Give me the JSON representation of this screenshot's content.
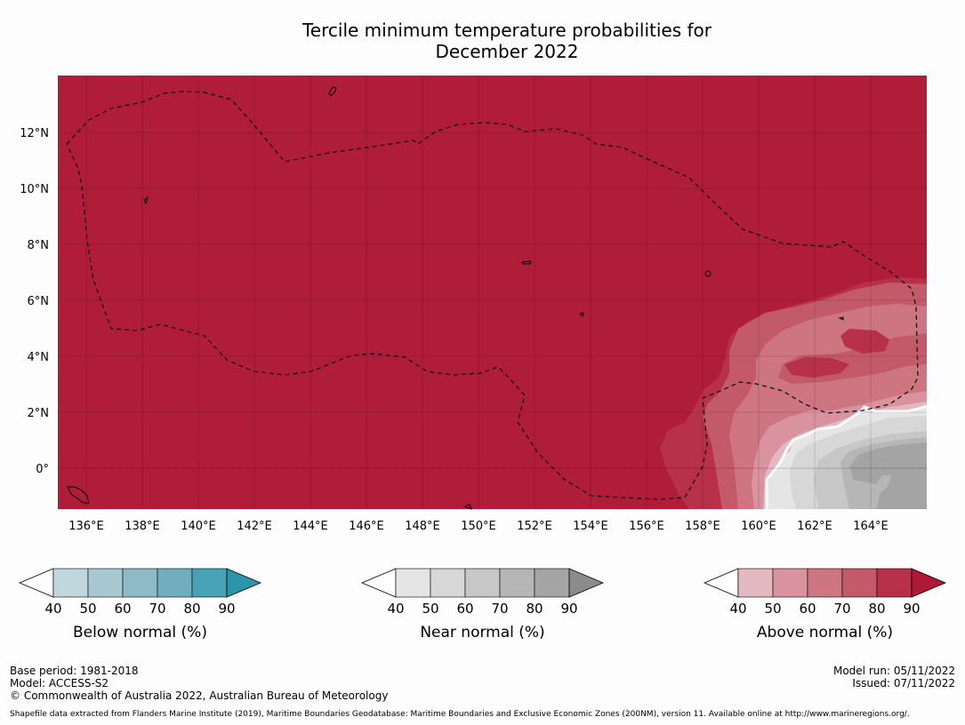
{
  "title_line1": "Tercile minimum temperature probabilities for",
  "title_line2": "December 2022",
  "map": {
    "background_color": "#b01d38",
    "lat_labels": [
      "12°N",
      "10°N",
      "8°N",
      "6°N",
      "4°N",
      "2°N",
      "0°"
    ],
    "lon_labels": [
      "136°E",
      "138°E",
      "140°E",
      "142°E",
      "144°E",
      "146°E",
      "148°E",
      "150°E",
      "152°E",
      "154°E",
      "156°E",
      "158°E",
      "160°E",
      "162°E",
      "164°E"
    ]
  },
  "colorbars": [
    {
      "id": "below",
      "title": "Below normal (%)",
      "ticks": [
        "40",
        "50",
        "60",
        "70",
        "80",
        "90"
      ],
      "colors": [
        "#c0d7de",
        "#a8c8d1",
        "#8fbac7",
        "#70aebd",
        "#47a2b5",
        "#2d95ab"
      ]
    },
    {
      "id": "near",
      "title": "Near normal (%)",
      "ticks": [
        "40",
        "50",
        "60",
        "70",
        "80",
        "90"
      ],
      "colors": [
        "#e5e5e5",
        "#d7d7d7",
        "#c7c7c7",
        "#b6b6b6",
        "#a4a4a4",
        "#8c8c8c"
      ]
    },
    {
      "id": "above",
      "title": "Above normal (%)",
      "ticks": [
        "40",
        "50",
        "60",
        "70",
        "80",
        "90"
      ],
      "colors": [
        "#e3b8c0",
        "#d8939e",
        "#cd7581",
        "#c35a69",
        "#b63149",
        "#ae1a36"
      ]
    }
  ],
  "footer": {
    "base_period": "Base period: 1981-2018",
    "model": "Model: ACCESS-S2",
    "copyright": "© Commonwealth of Australia 2022, Australian Bureau of Meteorology",
    "model_run": "Model run: 05/11/2022",
    "issued": "Issued: 07/11/2022",
    "shapefile": "Shapefile data extracted from Flanders Marine Institute (2019), Maritime Boundaries Geodatabase: Maritime Boundaries and Exclusive Economic Zones (200NM), version 11. Available online at http://www.marineregions.org/."
  }
}
